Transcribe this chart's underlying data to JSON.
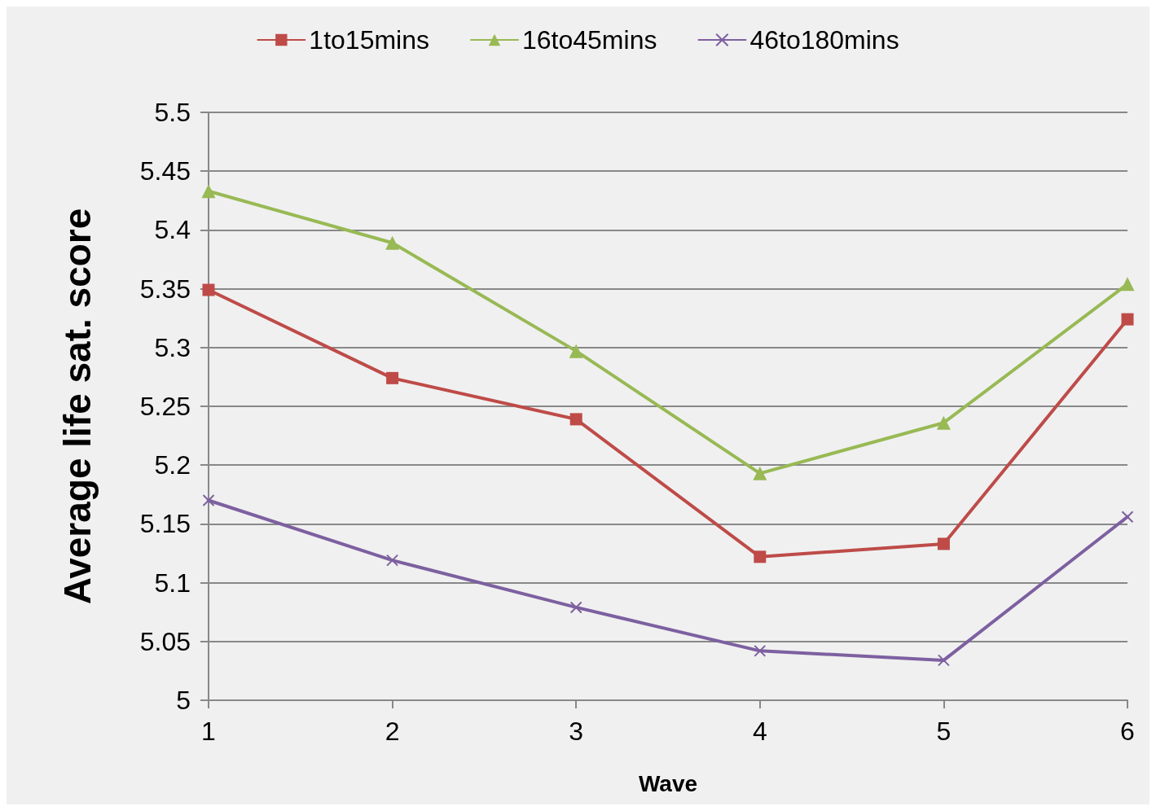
{
  "chart_data": {
    "type": "line",
    "xlabel": "Wave",
    "ylabel": "Average life sat. score",
    "x": [
      1,
      2,
      3,
      4,
      5,
      6
    ],
    "xlim": [
      1,
      6
    ],
    "xticks": [
      1,
      2,
      3,
      4,
      5,
      6
    ],
    "ylim": [
      5,
      5.5
    ],
    "yticks": [
      5,
      5.05,
      5.1,
      5.15,
      5.2,
      5.25,
      5.3,
      5.35,
      5.4,
      5.45,
      5.5
    ],
    "grid": "y",
    "legend": "top",
    "series": [
      {
        "name": "1to15mins",
        "color": "#be4b48",
        "marker": "square",
        "values": [
          5.349,
          5.274,
          5.239,
          5.122,
          5.133,
          5.324
        ]
      },
      {
        "name": "16to45mins",
        "color": "#98b954",
        "marker": "triangle",
        "values": [
          5.433,
          5.389,
          5.297,
          5.193,
          5.236,
          5.354
        ]
      },
      {
        "name": "46to180mins",
        "color": "#7d60a0",
        "marker": "cross",
        "values": [
          5.17,
          5.119,
          5.079,
          5.042,
          5.034,
          5.156
        ]
      }
    ]
  }
}
